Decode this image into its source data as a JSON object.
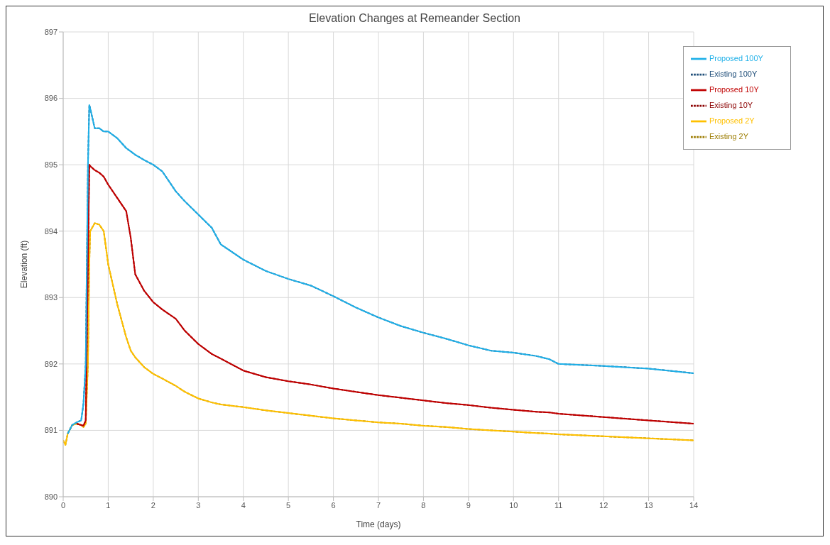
{
  "chart_data": {
    "type": "line",
    "title": "Elevation Changes at Remeander Section",
    "xlabel": "Time (days)",
    "ylabel": "Elevation (ft)",
    "x": [
      0,
      0.05,
      0.1,
      0.2,
      0.3,
      0.4,
      0.45,
      0.5,
      0.55,
      0.58,
      0.6,
      0.7,
      0.8,
      0.9,
      1,
      1.2,
      1.4,
      1.5,
      1.6,
      1.8,
      2,
      2.2,
      2.5,
      2.7,
      3,
      3.3,
      3.5,
      4,
      4.5,
      5,
      5.5,
      6,
      6.5,
      7,
      7.5,
      8,
      8.5,
      9,
      9.5,
      10,
      10.5,
      10.8,
      11,
      12,
      13,
      14
    ],
    "series": [
      {
        "name": "Proposed 100Y",
        "color": "#1fb0e8",
        "line_style": "solid",
        "values": [
          null,
          null,
          890.95,
          891.08,
          891.12,
          891.15,
          891.4,
          892.0,
          895.0,
          895.9,
          895.85,
          895.55,
          895.55,
          895.5,
          895.5,
          895.4,
          895.25,
          895.2,
          895.15,
          895.07,
          895.0,
          894.9,
          894.6,
          894.45,
          894.25,
          894.05,
          893.8,
          893.57,
          893.4,
          893.28,
          893.18,
          893.02,
          892.85,
          892.7,
          892.57,
          892.47,
          892.38,
          892.28,
          892.2,
          892.17,
          892.12,
          892.07,
          892.0,
          891.97,
          891.93,
          891.86
        ]
      },
      {
        "name": "Existing 100Y",
        "color": "#1f4e79",
        "line_style": "dashed",
        "values": [
          null,
          null,
          890.95,
          891.08,
          891.12,
          891.15,
          891.4,
          892.0,
          895.0,
          895.9,
          895.85,
          895.55,
          895.55,
          895.5,
          895.5,
          895.4,
          895.25,
          895.2,
          895.15,
          895.07,
          895.0,
          894.9,
          894.6,
          894.45,
          894.25,
          894.05,
          893.8,
          893.57,
          893.4,
          893.28,
          893.18,
          893.02,
          892.85,
          892.7,
          892.57,
          892.47,
          892.38,
          892.28,
          892.2,
          892.17,
          892.12,
          892.07,
          892.0,
          891.97,
          891.93,
          891.86
        ]
      },
      {
        "name": "Proposed 10Y",
        "color": "#c00000",
        "line_style": "solid",
        "values": [
          null,
          null,
          null,
          null,
          891.1,
          891.08,
          891.07,
          891.15,
          893.5,
          895.0,
          894.98,
          894.92,
          894.88,
          894.82,
          894.7,
          894.5,
          894.3,
          893.9,
          893.35,
          893.1,
          892.93,
          892.82,
          892.68,
          892.5,
          892.3,
          892.15,
          892.08,
          891.9,
          891.8,
          891.74,
          891.69,
          891.63,
          891.58,
          891.53,
          891.49,
          891.45,
          891.41,
          891.38,
          891.34,
          891.31,
          891.28,
          891.27,
          891.25,
          891.2,
          891.15,
          891.1
        ]
      },
      {
        "name": "Existing 10Y",
        "color": "#8b0000",
        "line_style": "dashed",
        "values": [
          null,
          null,
          null,
          null,
          891.1,
          891.08,
          891.07,
          891.15,
          893.5,
          895.0,
          894.98,
          894.92,
          894.88,
          894.82,
          894.7,
          894.5,
          894.3,
          893.9,
          893.35,
          893.1,
          892.93,
          892.82,
          892.68,
          892.5,
          892.3,
          892.15,
          892.08,
          891.9,
          891.8,
          891.74,
          891.69,
          891.63,
          891.58,
          891.53,
          891.49,
          891.45,
          891.41,
          891.38,
          891.34,
          891.31,
          891.28,
          891.27,
          891.25,
          891.2,
          891.15,
          891.1
        ]
      },
      {
        "name": "Proposed 2Y",
        "color": "#ffc000",
        "line_style": "solid",
        "values": [
          890.85,
          890.78,
          890.95,
          891.08,
          891.1,
          891.08,
          891.05,
          891.1,
          892.0,
          893.5,
          894.0,
          894.12,
          894.1,
          894.0,
          893.5,
          892.9,
          892.4,
          892.2,
          892.1,
          891.95,
          891.85,
          891.78,
          891.67,
          891.58,
          891.48,
          891.42,
          891.39,
          891.35,
          891.3,
          891.26,
          891.22,
          891.18,
          891.15,
          891.12,
          891.1,
          891.07,
          891.05,
          891.02,
          891.0,
          890.98,
          890.96,
          890.95,
          890.94,
          890.91,
          890.88,
          890.85
        ]
      },
      {
        "name": "Existing 2Y",
        "color": "#9c7c00",
        "line_style": "dashed",
        "values": [
          890.85,
          890.78,
          890.95,
          891.08,
          891.1,
          891.08,
          891.05,
          891.1,
          892.0,
          893.5,
          894.0,
          894.12,
          894.1,
          894.0,
          893.5,
          892.9,
          892.4,
          892.2,
          892.1,
          891.95,
          891.85,
          891.78,
          891.67,
          891.58,
          891.48,
          891.42,
          891.39,
          891.35,
          891.3,
          891.26,
          891.22,
          891.18,
          891.15,
          891.12,
          891.1,
          891.07,
          891.05,
          891.02,
          891.0,
          890.98,
          890.96,
          890.95,
          890.94,
          890.91,
          890.88,
          890.85
        ]
      }
    ],
    "xlim": [
      0,
      14
    ],
    "xticks": [
      0,
      1,
      2,
      3,
      4,
      5,
      6,
      7,
      8,
      9,
      10,
      11,
      12,
      13,
      14
    ],
    "ylim": [
      890,
      897
    ],
    "yticks": [
      890,
      891,
      892,
      893,
      894,
      895,
      896,
      897
    ],
    "grid": true,
    "legend": "top right",
    "marker": "none"
  }
}
